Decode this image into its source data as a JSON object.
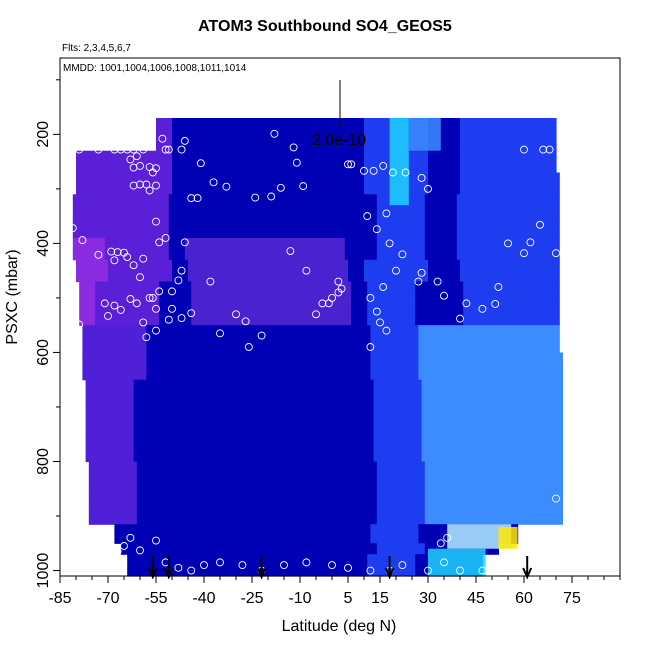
{
  "chart_data": {
    "type": "heatmap",
    "title": "ATOM3 Southbound SO4_GEOS5",
    "flights_note": "Flts: 2,3,4,5,6,7",
    "dates_note": "MMDD: 1001,1004,1006,1008,1011,1014",
    "scale_label": "2.0e-10",
    "xlabel": "Latitude (deg N)",
    "ylabel": "PSXC (mbar)",
    "xlim": [
      -85,
      90
    ],
    "ylim": [
      1010,
      60
    ],
    "x_ticks": [
      "-85",
      "-70",
      "-55",
      "-40",
      "-25",
      "-10",
      "5",
      "15",
      "30",
      "45",
      "60",
      "75"
    ],
    "x_tick_values": [
      -85,
      -70,
      -55,
      -40,
      -25,
      -10,
      5,
      15,
      30,
      45,
      60,
      75
    ],
    "y_ticks": [
      "200",
      "400",
      "600",
      "800",
      "1000"
    ],
    "y_tick_values": [
      200,
      400,
      600,
      800,
      1000
    ],
    "colors": {
      "purple": "#8a2be2",
      "deep_blue": "#0000b4",
      "blue": "#1e3cf0",
      "light_blue": "#3c8cff",
      "cyan": "#1ed2ff",
      "pale_cyan": "#b4f0ff",
      "yellow": "#ffe600",
      "orange": "#ffa500"
    },
    "field_rows": [
      {
        "p_top": 170,
        "p_bot": 230,
        "lat_start": -55,
        "lat_end": 70
      },
      {
        "p_top": 230,
        "p_bot": 270,
        "lat_start": -80,
        "lat_end": 70
      },
      {
        "p_top": 270,
        "p_bot": 310,
        "lat_start": -80,
        "lat_end": 71
      },
      {
        "p_top": 310,
        "p_bot": 350,
        "lat_start": -81,
        "lat_end": 71
      },
      {
        "p_top": 350,
        "p_bot": 390,
        "lat_start": -81,
        "lat_end": 71
      },
      {
        "p_top": 390,
        "p_bot": 430,
        "lat_start": -81,
        "lat_end": 71
      },
      {
        "p_top": 430,
        "p_bot": 470,
        "lat_start": -80,
        "lat_end": 71
      },
      {
        "p_top": 470,
        "p_bot": 510,
        "lat_start": -79,
        "lat_end": 71
      },
      {
        "p_top": 510,
        "p_bot": 550,
        "lat_start": -79,
        "lat_end": 71
      },
      {
        "p_top": 550,
        "p_bot": 600,
        "lat_start": -78,
        "lat_end": 71
      },
      {
        "p_top": 600,
        "p_bot": 650,
        "lat_start": -78,
        "lat_end": 72
      },
      {
        "p_top": 650,
        "p_bot": 700,
        "lat_start": -77,
        "lat_end": 72
      },
      {
        "p_top": 700,
        "p_bot": 750,
        "lat_start": -77,
        "lat_end": 72
      },
      {
        "p_top": 750,
        "p_bot": 800,
        "lat_start": -77,
        "lat_end": 72
      },
      {
        "p_top": 800,
        "p_bot": 850,
        "lat_start": -76,
        "lat_end": 72
      },
      {
        "p_top": 850,
        "p_bot": 880,
        "lat_start": -76,
        "lat_end": 72
      },
      {
        "p_top": 880,
        "p_bot": 915,
        "lat_start": -76,
        "lat_end": 72
      },
      {
        "p_top": 915,
        "p_bot": 950,
        "lat_start": -68,
        "lat_end": 58
      },
      {
        "p_top": 950,
        "p_bot": 970,
        "lat_start": -66,
        "lat_end": 52
      },
      {
        "p_top": 970,
        "p_bot": 1010,
        "lat_start": -64,
        "lat_end": 47
      }
    ],
    "bright_features": [
      {
        "lat_from": 18,
        "lat_to": 24,
        "p_top": 170,
        "p_bot": 330,
        "level": "cyan"
      },
      {
        "lat_from": 24,
        "lat_to": 34,
        "p_top": 170,
        "p_bot": 230,
        "level": "light_blue"
      },
      {
        "lat_from": 36,
        "lat_to": 56,
        "p_top": 915,
        "p_bot": 960,
        "level": "pale_cyan"
      },
      {
        "lat_from": 52,
        "lat_to": 58,
        "p_top": 920,
        "p_bot": 960,
        "level": "yellow"
      },
      {
        "lat_from": 30,
        "lat_to": 48,
        "p_top": 960,
        "p_bot": 1010,
        "level": "cyan"
      }
    ],
    "sample_points": [
      [
        -79,
        228
      ],
      [
        -73,
        228
      ],
      [
        -68,
        228
      ],
      [
        -66,
        228
      ],
      [
        -64,
        228
      ],
      [
        -62,
        228
      ],
      [
        -63,
        246
      ],
      [
        -61,
        240
      ],
      [
        -59,
        228
      ],
      [
        -60,
        258
      ],
      [
        -62,
        261
      ],
      [
        -57,
        260
      ],
      [
        -55,
        262
      ],
      [
        -56,
        270
      ],
      [
        -52,
        228
      ],
      [
        -47,
        228
      ],
      [
        -46,
        212
      ],
      [
        -41,
        253
      ],
      [
        -42,
        317
      ],
      [
        -44,
        317
      ],
      [
        -51,
        228
      ],
      [
        -53,
        208
      ],
      [
        -60,
        292
      ],
      [
        -62,
        294
      ],
      [
        -58,
        292
      ],
      [
        -57,
        303
      ],
      [
        -55,
        294
      ],
      [
        -55,
        360
      ],
      [
        -81,
        372
      ],
      [
        -78,
        394
      ],
      [
        -73,
        421
      ],
      [
        -69,
        415
      ],
      [
        -67,
        416
      ],
      [
        -68,
        431
      ],
      [
        -65,
        417
      ],
      [
        -64,
        425
      ],
      [
        -62,
        440
      ],
      [
        -59,
        428
      ],
      [
        -60,
        462
      ],
      [
        -57,
        500
      ],
      [
        -56,
        500
      ],
      [
        -55,
        520
      ],
      [
        -55,
        560
      ],
      [
        -58,
        572
      ],
      [
        -59,
        545
      ],
      [
        -63,
        502
      ],
      [
        -61,
        510
      ],
      [
        -66,
        522
      ],
      [
        -68,
        514
      ],
      [
        -70,
        533
      ],
      [
        -71,
        510
      ],
      [
        -79,
        549
      ],
      [
        -54,
        488
      ],
      [
        -50,
        488
      ],
      [
        -50,
        520
      ],
      [
        -51,
        540
      ],
      [
        -47,
        537
      ],
      [
        -44,
        528
      ],
      [
        -48,
        468
      ],
      [
        -47,
        450
      ],
      [
        -46,
        398
      ],
      [
        -52,
        390
      ],
      [
        -54,
        398
      ],
      [
        -38,
        470
      ],
      [
        -35,
        565
      ],
      [
        -30,
        530
      ],
      [
        -27,
        543
      ],
      [
        -26,
        590
      ],
      [
        -22,
        569
      ],
      [
        -37,
        288
      ],
      [
        -33,
        296
      ],
      [
        -24,
        316
      ],
      [
        -19,
        314
      ],
      [
        -16,
        298
      ],
      [
        -18,
        199
      ],
      [
        -12,
        224
      ],
      [
        -11,
        252
      ],
      [
        -9,
        295
      ],
      [
        -13,
        414
      ],
      [
        -8,
        450
      ],
      [
        -5,
        530
      ],
      [
        2,
        470
      ],
      [
        2,
        490
      ],
      [
        0,
        500
      ],
      [
        -1,
        510
      ],
      [
        -3,
        510
      ],
      [
        3,
        483
      ],
      [
        5,
        255
      ],
      [
        6,
        255
      ],
      [
        10,
        267
      ],
      [
        13,
        267
      ],
      [
        16,
        258
      ],
      [
        19,
        270
      ],
      [
        17,
        345
      ],
      [
        11,
        350
      ],
      [
        14,
        374
      ],
      [
        18,
        400
      ],
      [
        22,
        420
      ],
      [
        20,
        450
      ],
      [
        16,
        480
      ],
      [
        12,
        500
      ],
      [
        14,
        525
      ],
      [
        15,
        545
      ],
      [
        17,
        560
      ],
      [
        12,
        590
      ],
      [
        23,
        270
      ],
      [
        28,
        280
      ],
      [
        30,
        300
      ],
      [
        28,
        454
      ],
      [
        27,
        470
      ],
      [
        33,
        470
      ],
      [
        35,
        496
      ],
      [
        42,
        510
      ],
      [
        40,
        538
      ],
      [
        47,
        520
      ],
      [
        51,
        511
      ],
      [
        52,
        480
      ],
      [
        55,
        400
      ],
      [
        60,
        418
      ],
      [
        62,
        398
      ],
      [
        65,
        366
      ],
      [
        70,
        418
      ],
      [
        70,
        868
      ],
      [
        60,
        228
      ],
      [
        66,
        228
      ],
      [
        68,
        228
      ],
      [
        -63,
        940
      ],
      [
        -65,
        955
      ],
      [
        -67,
        965
      ],
      [
        -60,
        963
      ],
      [
        -55,
        945
      ],
      [
        -52,
        985
      ],
      [
        -48,
        995
      ],
      [
        -44,
        1000
      ],
      [
        -40,
        990
      ],
      [
        -35,
        985
      ],
      [
        -28,
        990
      ],
      [
        -22,
        1000
      ],
      [
        -15,
        990
      ],
      [
        -8,
        985
      ],
      [
        0,
        990
      ],
      [
        5,
        995
      ],
      [
        12,
        1000
      ],
      [
        18,
        1000
      ],
      [
        22,
        990
      ],
      [
        30,
        1000
      ],
      [
        35,
        985
      ],
      [
        40,
        1000
      ],
      [
        47,
        1000
      ],
      [
        34,
        950
      ],
      [
        36,
        940
      ]
    ],
    "arrow_latitudes": [
      -56,
      -51,
      -22,
      18,
      61
    ]
  }
}
